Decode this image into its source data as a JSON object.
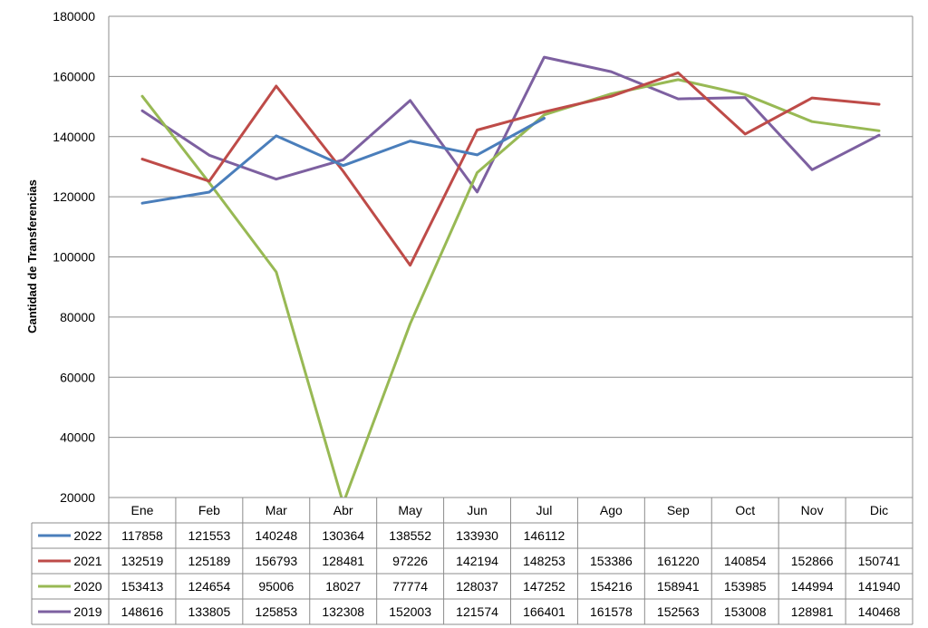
{
  "chart_data": {
    "type": "line",
    "ylabel": "Cantidad de Transferencias",
    "ylim": [
      20000,
      180000
    ],
    "yticks": [
      20000,
      40000,
      60000,
      80000,
      100000,
      120000,
      140000,
      160000,
      180000
    ],
    "categories": [
      "Ene",
      "Feb",
      "Mar",
      "Abr",
      "May",
      "Jun",
      "Jul",
      "Ago",
      "Sep",
      "Oct",
      "Nov",
      "Dic"
    ],
    "grid": true,
    "legend": "data-table",
    "series": [
      {
        "name": "2022",
        "color": "#4a7ebb",
        "values": [
          117858,
          121553,
          140248,
          130364,
          138552,
          133930,
          146112,
          null,
          null,
          null,
          null,
          null
        ]
      },
      {
        "name": "2021",
        "color": "#be4b48",
        "values": [
          132519,
          125189,
          156793,
          128481,
          97226,
          142194,
          148253,
          153386,
          161220,
          140854,
          152866,
          150741
        ]
      },
      {
        "name": "2020",
        "color": "#98b954",
        "values": [
          153413,
          124654,
          95006,
          18027,
          77774,
          128037,
          147252,
          154216,
          158941,
          153985,
          144994,
          141940
        ]
      },
      {
        "name": "2019",
        "color": "#7d60a0",
        "values": [
          148616,
          133805,
          125853,
          132308,
          152003,
          121574,
          166401,
          161578,
          152563,
          153008,
          128981,
          140468
        ]
      }
    ]
  }
}
